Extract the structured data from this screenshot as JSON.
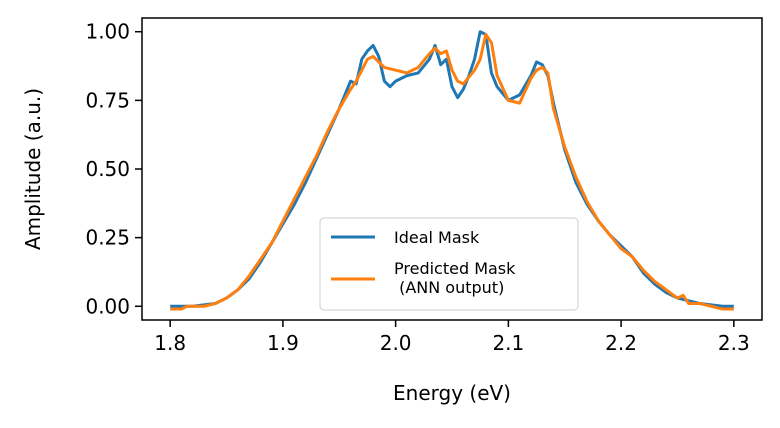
{
  "chart_data": {
    "type": "line",
    "title": "",
    "xlabel": "Energy (eV)",
    "ylabel": "Amplitude (a.u.)",
    "xlim": [
      1.775,
      2.325
    ],
    "ylim": [
      -0.05,
      1.05
    ],
    "xticks": [
      1.8,
      1.9,
      2.0,
      2.1,
      2.2,
      2.3
    ],
    "xtick_labels": [
      "1.8",
      "1.9",
      "2.0",
      "2.1",
      "2.2",
      "2.3"
    ],
    "yticks": [
      0.0,
      0.25,
      0.5,
      0.75,
      1.0
    ],
    "ytick_labels": [
      "0.00",
      "0.25",
      "0.50",
      "0.75",
      "1.00"
    ],
    "grid": false,
    "legend": {
      "placement": "lower-center",
      "entries": [
        "Ideal Mask",
        "Predicted Mask\n (ANN output)"
      ]
    },
    "series": [
      {
        "name": "Ideal Mask",
        "color": "#1f77b4",
        "x": [
          1.8,
          1.82,
          1.84,
          1.85,
          1.86,
          1.87,
          1.88,
          1.89,
          1.9,
          1.91,
          1.92,
          1.93,
          1.94,
          1.95,
          1.96,
          1.965,
          1.97,
          1.975,
          1.98,
          1.985,
          1.99,
          1.995,
          2.0,
          2.005,
          2.01,
          2.02,
          2.03,
          2.035,
          2.04,
          2.045,
          2.05,
          2.055,
          2.06,
          2.065,
          2.07,
          2.075,
          2.08,
          2.085,
          2.09,
          2.1,
          2.11,
          2.12,
          2.125,
          2.13,
          2.135,
          2.14,
          2.15,
          2.16,
          2.17,
          2.18,
          2.19,
          2.2,
          2.21,
          2.22,
          2.23,
          2.24,
          2.25,
          2.26,
          2.27,
          2.28,
          2.29,
          2.3
        ],
        "y": [
          0.0,
          0.0,
          0.01,
          0.03,
          0.06,
          0.1,
          0.16,
          0.23,
          0.3,
          0.37,
          0.45,
          0.54,
          0.63,
          0.72,
          0.82,
          0.81,
          0.9,
          0.93,
          0.95,
          0.91,
          0.82,
          0.8,
          0.82,
          0.83,
          0.84,
          0.85,
          0.9,
          0.95,
          0.88,
          0.9,
          0.8,
          0.76,
          0.79,
          0.84,
          0.9,
          1.0,
          0.99,
          0.85,
          0.8,
          0.75,
          0.77,
          0.84,
          0.89,
          0.88,
          0.84,
          0.74,
          0.57,
          0.45,
          0.37,
          0.31,
          0.26,
          0.22,
          0.18,
          0.12,
          0.08,
          0.05,
          0.03,
          0.02,
          0.01,
          0.005,
          0.0,
          0.0
        ]
      },
      {
        "name": "Predicted Mask\n (ANN output)",
        "color": "#ff7f0e",
        "x": [
          1.8,
          1.81,
          1.815,
          1.82,
          1.83,
          1.84,
          1.85,
          1.86,
          1.87,
          1.88,
          1.89,
          1.9,
          1.91,
          1.92,
          1.93,
          1.94,
          1.95,
          1.96,
          1.965,
          1.97,
          1.975,
          1.98,
          1.99,
          2.0,
          2.01,
          2.02,
          2.03,
          2.035,
          2.04,
          2.045,
          2.05,
          2.055,
          2.06,
          2.07,
          2.075,
          2.08,
          2.085,
          2.09,
          2.1,
          2.11,
          2.12,
          2.125,
          2.13,
          2.135,
          2.14,
          2.15,
          2.16,
          2.17,
          2.18,
          2.19,
          2.2,
          2.21,
          2.22,
          2.23,
          2.24,
          2.25,
          2.255,
          2.26,
          2.27,
          2.28,
          2.29,
          2.3
        ],
        "y": [
          -0.01,
          -0.01,
          0.0,
          0.0,
          0.0,
          0.01,
          0.03,
          0.06,
          0.11,
          0.17,
          0.23,
          0.31,
          0.39,
          0.47,
          0.55,
          0.64,
          0.72,
          0.79,
          0.82,
          0.86,
          0.9,
          0.91,
          0.87,
          0.86,
          0.85,
          0.87,
          0.92,
          0.94,
          0.92,
          0.93,
          0.86,
          0.82,
          0.81,
          0.86,
          0.9,
          0.99,
          0.96,
          0.84,
          0.75,
          0.74,
          0.83,
          0.86,
          0.87,
          0.85,
          0.72,
          0.58,
          0.47,
          0.38,
          0.31,
          0.26,
          0.21,
          0.18,
          0.13,
          0.09,
          0.06,
          0.03,
          0.04,
          0.01,
          0.01,
          0.0,
          -0.01,
          -0.01
        ]
      }
    ]
  }
}
